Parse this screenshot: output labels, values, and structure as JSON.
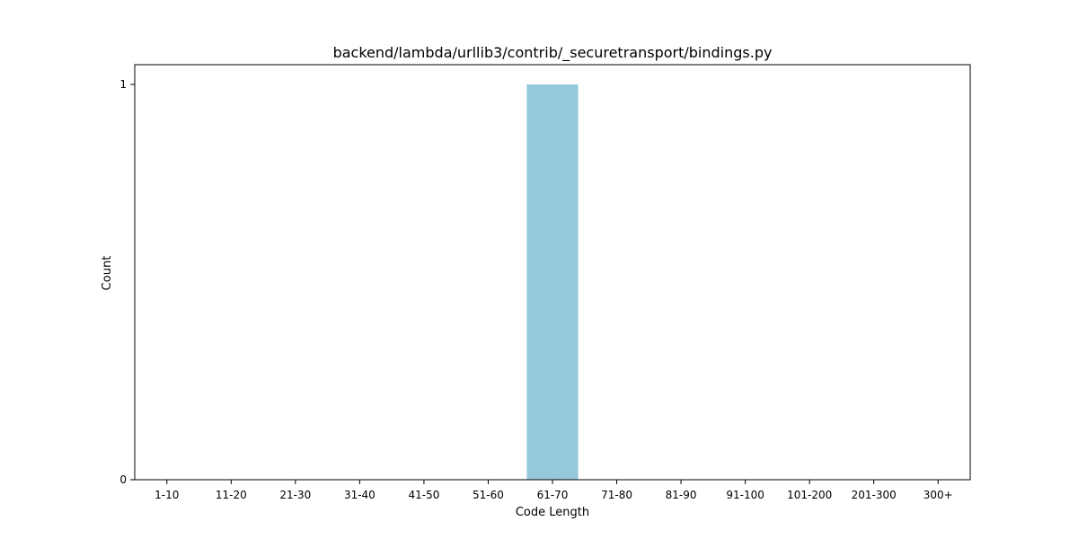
{
  "chart_data": {
    "type": "bar",
    "title": "backend/lambda/urllib3/contrib/_securetransport/bindings.py",
    "xlabel": "Code Length",
    "ylabel": "Count",
    "categories": [
      "1-10",
      "11-20",
      "21-30",
      "31-40",
      "41-50",
      "51-60",
      "61-70",
      "71-80",
      "81-90",
      "91-100",
      "101-200",
      "201-300",
      "300+"
    ],
    "values": [
      0,
      0,
      0,
      0,
      0,
      0,
      1,
      0,
      0,
      0,
      0,
      0,
      0
    ],
    "ylim": [
      0,
      1.05
    ],
    "yticks": [
      0,
      1
    ],
    "bar_color": "#96c9dc",
    "grid": false,
    "legend": "none"
  }
}
